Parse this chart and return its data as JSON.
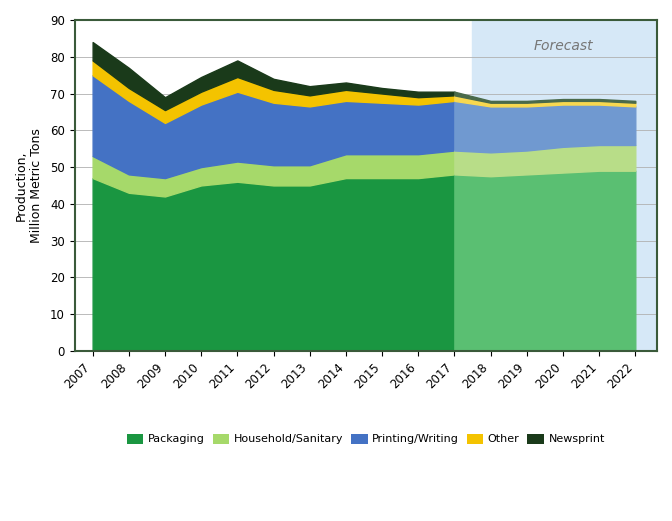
{
  "years_hist": [
    2007,
    2008,
    2009,
    2010,
    2011,
    2012,
    2013,
    2014,
    2015,
    2016,
    2017
  ],
  "years_fore": [
    2017,
    2018,
    2019,
    2020,
    2021,
    2022
  ],
  "packaging_hist": [
    47,
    43,
    42,
    45,
    46,
    45,
    45,
    47,
    47,
    47,
    48
  ],
  "household_hist": [
    6,
    5,
    5,
    5,
    5.5,
    5.5,
    5.5,
    6.5,
    6.5,
    6.5,
    6.5
  ],
  "printing_hist": [
    22,
    20,
    15,
    17,
    19,
    17,
    16,
    14.5,
    14,
    13.5,
    13.5
  ],
  "other_hist": [
    4,
    3.5,
    3.5,
    3.5,
    4,
    3.5,
    3,
    3,
    2.5,
    2,
    1.5
  ],
  "newsprint_hist": [
    5,
    5.5,
    3.5,
    4,
    4.5,
    3,
    2.5,
    2,
    1.5,
    1.5,
    1
  ],
  "packaging_fore": [
    48,
    47.5,
    48,
    48.5,
    49,
    49
  ],
  "household_fore": [
    6.5,
    6.5,
    6.5,
    7,
    7,
    7
  ],
  "printing_fore": [
    13.5,
    12.5,
    12,
    11.5,
    11,
    10.5
  ],
  "other_fore": [
    1.5,
    1,
    1,
    1,
    1,
    1
  ],
  "newsprint_fore": [
    1,
    0.5,
    0.5,
    0.5,
    0.5,
    0.5
  ],
  "packaging_color": "#1a9641",
  "household_sanitary_color": "#a6d96a",
  "printing_writing_color": "#4472c4",
  "other_color": "#f4c300",
  "newsprint_color": "#1a3a1a",
  "packaging_fore_color": "#5abf72",
  "household_fore_color": "#b8dd88",
  "printing_fore_color": "#7099d0",
  "other_fore_color": "#f8d850",
  "newsprint_fore_color": "#4a6a4a",
  "forecast_bg_color": "#d6e8f7",
  "forecast_label": "Forecast",
  "ylabel": "Production,\nMillion Metric Tons",
  "ylim": [
    0,
    90
  ],
  "yticks": [
    0,
    10,
    20,
    30,
    40,
    50,
    60,
    70,
    80,
    90
  ],
  "background_color": "#ffffff",
  "border_color": "#3a5a3a",
  "axis_fontsize": 9,
  "tick_fontsize": 8.5
}
